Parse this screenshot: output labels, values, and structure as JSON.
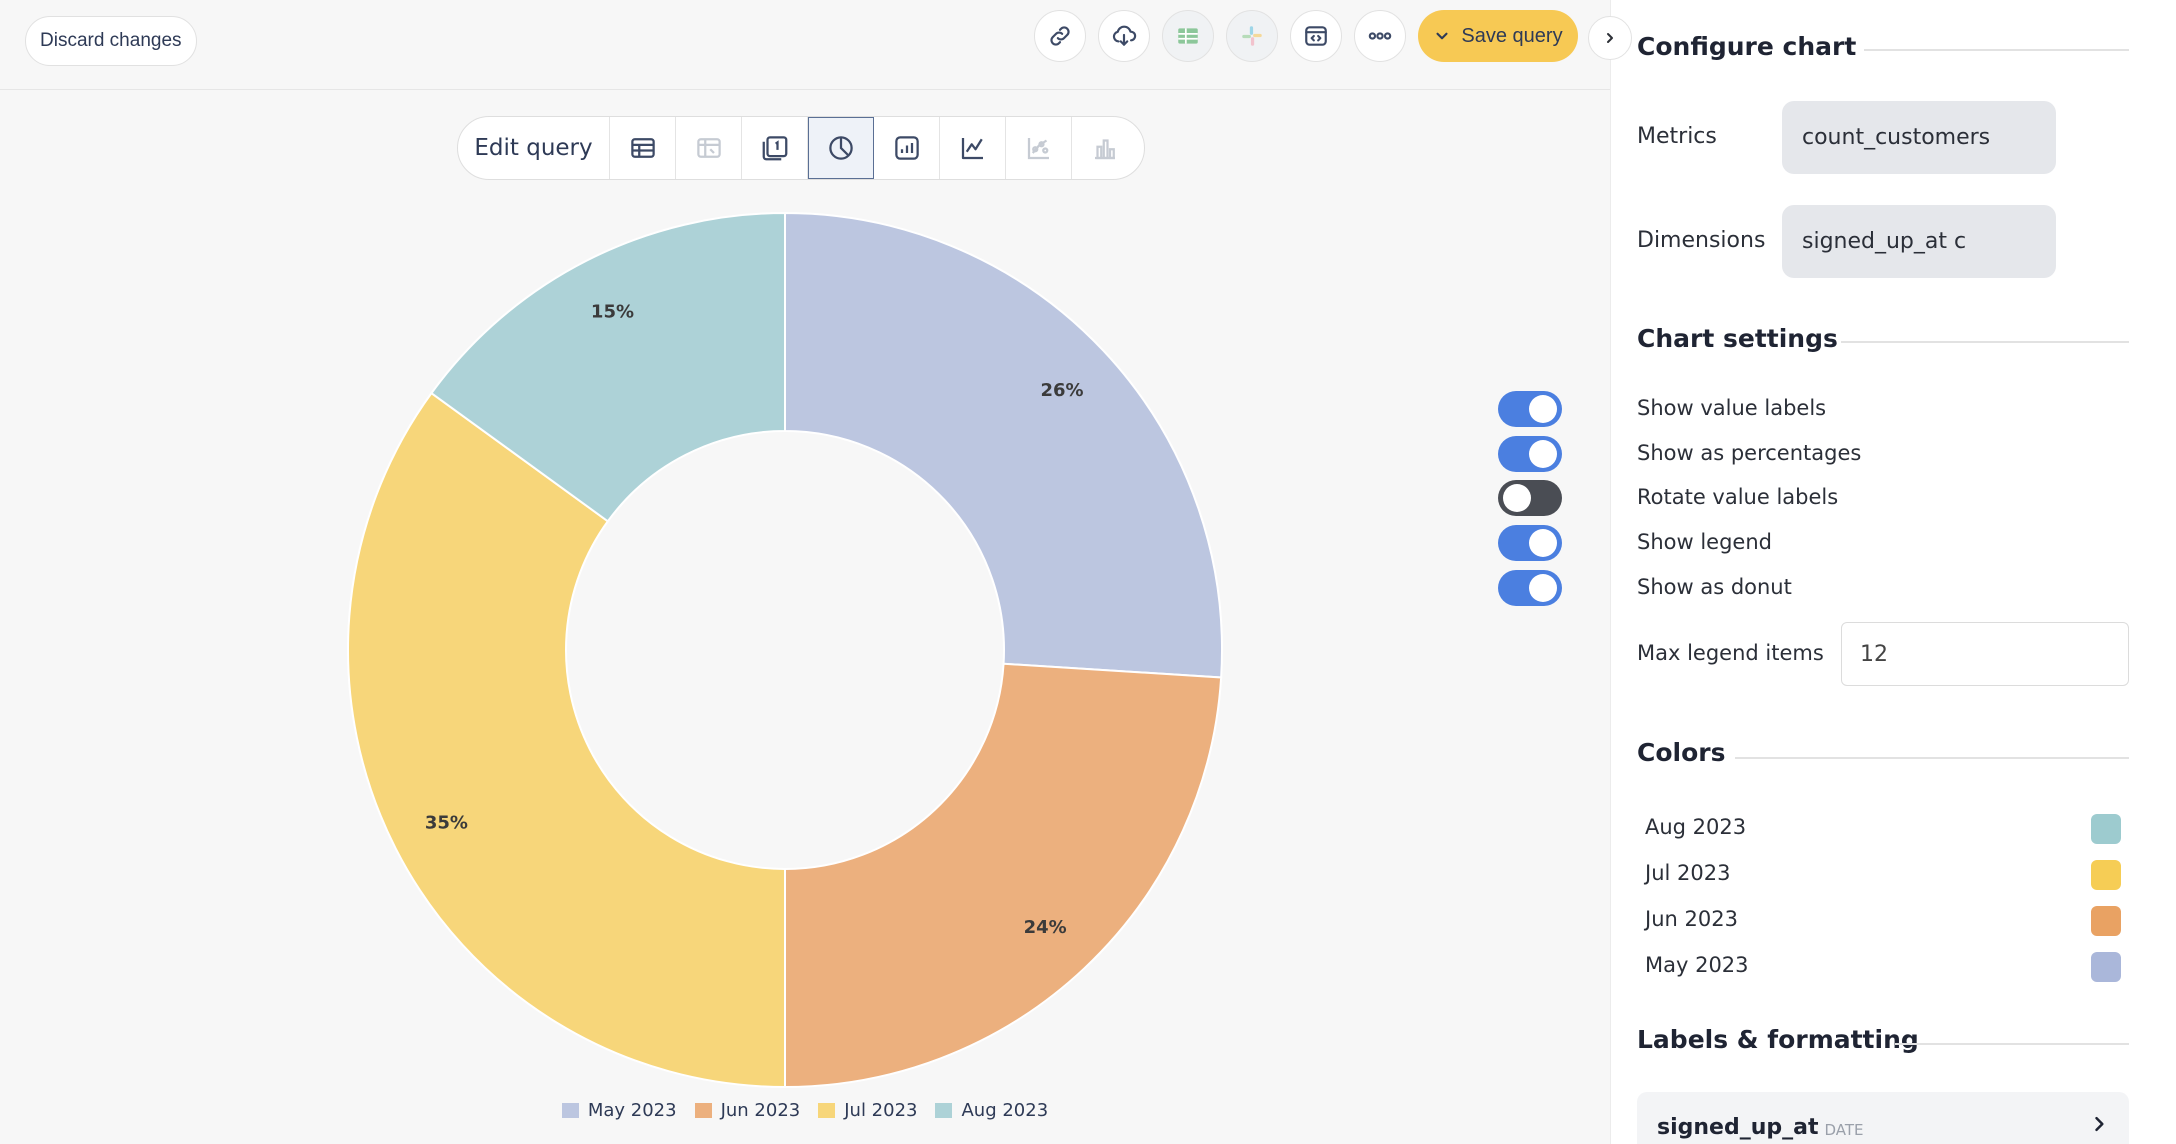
{
  "topbar": {
    "discard_label": "Discard changes",
    "save_label": "Save query",
    "icons": [
      "link-icon",
      "download-cloud-icon",
      "google-sheets-icon",
      "slack-icon",
      "embed-icon",
      "more-icon"
    ]
  },
  "viz_toolbar": {
    "edit_label": "Edit query",
    "buttons": [
      "table-icon",
      "pivot-table-icon",
      "single-value-icon",
      "pie-chart-icon",
      "kpi-chart-icon",
      "line-chart-icon",
      "scatter-chart-icon",
      "bar-chart-icon"
    ],
    "active": "pie-chart-icon"
  },
  "chart_data": {
    "type": "pie",
    "donut": true,
    "show_percentages": true,
    "legend_position": "bottom",
    "categories": [
      "May 2023",
      "Jun 2023",
      "Jul 2023",
      "Aug 2023"
    ],
    "values": [
      26,
      24,
      35,
      15
    ],
    "labels": [
      "26%",
      "24%",
      "35%",
      "15%"
    ],
    "colors": [
      "#bcc6e0",
      "#ecb07e",
      "#f7d67a",
      "#add2d7"
    ]
  },
  "panel": {
    "configure_title": "Configure chart",
    "metrics_label": "Metrics",
    "metrics_value": "count_customers",
    "dimensions_label": "Dimensions",
    "dimensions_value": "signed_up_at c",
    "settings_title": "Chart settings",
    "toggles": [
      {
        "label": "Show value labels",
        "on": true
      },
      {
        "label": "Show as percentages",
        "on": true
      },
      {
        "label": "Rotate value labels",
        "on": false
      },
      {
        "label": "Show legend",
        "on": true
      },
      {
        "label": "Show as donut",
        "on": true
      }
    ],
    "max_legend_label": "Max legend items",
    "max_legend_value": "12",
    "colors_title": "Colors",
    "colors": [
      {
        "label": "Aug 2023",
        "color": "#9dcbcf"
      },
      {
        "label": "Jul 2023",
        "color": "#f6cd55"
      },
      {
        "label": "Jun 2023",
        "color": "#e9a263"
      },
      {
        "label": "May 2023",
        "color": "#aab7da"
      }
    ],
    "labels_title": "Labels & formatting",
    "field_name": "signed_up_at",
    "field_type": "DATE"
  }
}
